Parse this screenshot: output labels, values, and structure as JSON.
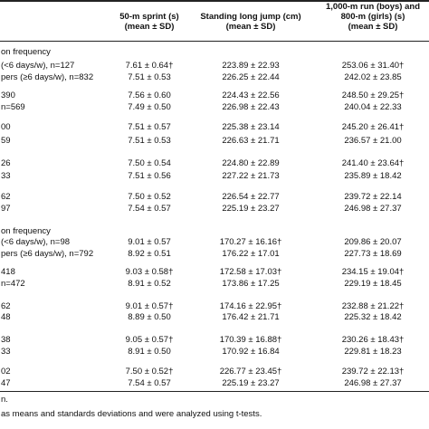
{
  "header": {
    "columns": [
      [
        "50-m sprint (s)",
        "(mean ± SD)"
      ],
      [
        "Standing long jump (cm)",
        "(mean ± SD)"
      ],
      [
        "1,000-m run (boys) and",
        "800-m (girls) (s)",
        "(mean ± SD)"
      ]
    ]
  },
  "table": {
    "rows": [
      [
        "on frequency"
      ],
      [
        "(<6 days/w), n=127",
        "7.61 ± 0.64†",
        "223.89 ± 22.93",
        "253.06 ± 31.40†"
      ],
      [
        "pers (≥6 days/w), n=832",
        "7.51 ± 0.53",
        "226.25 ± 22.44",
        "242.02 ± 23.85"
      ],
      [
        "390",
        "7.56 ± 0.60",
        "224.43 ± 22.56",
        "248.50 ± 29.25†"
      ],
      [
        "n=569",
        "7.49 ± 0.50",
        "226.98 ± 22.43",
        "240.04 ± 22.33"
      ],
      [
        "00",
        "7.51 ± 0.57",
        "225.38 ± 23.14",
        "245.20 ± 26.41†"
      ],
      [
        "59",
        "7.51 ± 0.53",
        "226.63 ± 21.71",
        "236.57 ± 21.00"
      ],
      [
        "26",
        "7.50 ± 0.54",
        "224.80 ± 22.89",
        "241.40 ± 23.64†"
      ],
      [
        "33",
        "7.51 ± 0.56",
        "227.22 ± 21.73",
        "235.89 ± 18.42"
      ],
      [
        "62",
        "7.50 ± 0.52",
        "226.54 ± 22.77",
        "239.72 ± 22.14"
      ],
      [
        "97",
        "7.54 ± 0.57",
        "225.19 ± 23.27",
        "246.98 ± 27.37"
      ],
      [
        "on frequency"
      ],
      [
        "(<6 days/w), n=98",
        "9.01 ± 0.57",
        "170.27 ± 16.16†",
        "209.86 ± 20.07"
      ],
      [
        "pers (≥6 days/w), n=792",
        "8.92 ± 0.51",
        "176.22 ± 17.01",
        "227.73 ± 18.69"
      ],
      [
        "418",
        "9.03 ± 0.58†",
        "172.58 ± 17.03†",
        "234.15 ± 19.04†"
      ],
      [
        "n=472",
        "8.91 ± 0.52",
        "173.86 ± 17.25",
        "229.19 ± 18.45"
      ],
      [
        "62",
        "9.01 ± 0.57†",
        "174.16 ± 22.95†",
        "232.88 ± 21.22†"
      ],
      [
        "48",
        "8.89 ± 0.50",
        "176.42 ± 21.71",
        "225.32 ± 18.42"
      ],
      [
        "38",
        "9.05 ± 0.57†",
        "170.39 ± 16.88†",
        "230.26 ± 18.43†"
      ],
      [
        "33",
        "8.91 ± 0.50",
        "170.92 ± 16.84",
        "229.81 ± 18.23"
      ],
      [
        "02",
        "7.50 ± 0.52†",
        "226.77 ± 23.45†",
        "239.72 ± 22.13†"
      ],
      [
        "47",
        "7.54 ± 0.57",
        "225.19 ± 23.27",
        "246.98 ± 27.37"
      ]
    ]
  },
  "footer": {
    "notes": [
      "n.",
      "as means and standards deviations and were analyzed using t-tests."
    ]
  }
}
